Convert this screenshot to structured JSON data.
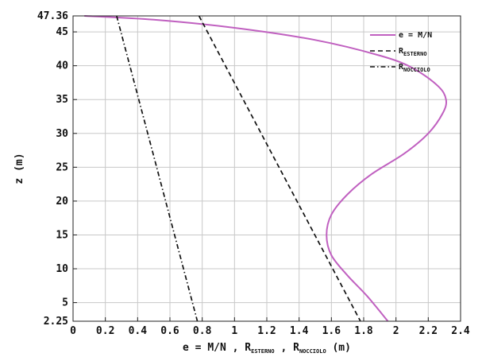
{
  "chart_data": {
    "type": "line",
    "xlabel": {
      "main": "e = M/N , R",
      "sub1": "ESTERNO",
      "sep": " , R",
      "sub2": "NOCCIOLO",
      "unit": " (m)"
    },
    "ylabel": "z (m)",
    "xlim": [
      0,
      2.4
    ],
    "ylim": [
      2.25,
      47.36
    ],
    "xticks": [
      "0",
      "0.2",
      "0.4",
      "0.6",
      "0.8",
      "1",
      "1.2",
      "1.4",
      "1.6",
      "1.8",
      "2",
      "2.2",
      "2.4"
    ],
    "xtick_values": [
      0,
      0.2,
      0.4,
      0.6,
      0.8,
      1,
      1.2,
      1.4,
      1.6,
      1.8,
      2,
      2.2,
      2.4
    ],
    "yticks": [
      "2.25",
      "5",
      "10",
      "15",
      "20",
      "25",
      "30",
      "35",
      "40",
      "45",
      "47.36"
    ],
    "ytick_values": [
      2.25,
      5,
      10,
      15,
      20,
      25,
      30,
      35,
      40,
      45,
      47.36
    ],
    "grid": true,
    "legend_position": "top-right",
    "series": [
      {
        "name": "e = M/N",
        "style": "solid",
        "color": "#c060c0",
        "points": [
          [
            0.07,
            47.36
          ],
          [
            0.5,
            46.8
          ],
          [
            1.0,
            45.6
          ],
          [
            1.5,
            43.8
          ],
          [
            1.9,
            41.5
          ],
          [
            2.1,
            39.7
          ],
          [
            2.26,
            37.0
          ],
          [
            2.31,
            35.0
          ],
          [
            2.29,
            33.0
          ],
          [
            2.2,
            30.0
          ],
          [
            2.05,
            27.0
          ],
          [
            1.85,
            24.0
          ],
          [
            1.7,
            21.0
          ],
          [
            1.6,
            18.0
          ],
          [
            1.57,
            15.0
          ],
          [
            1.6,
            12.0
          ],
          [
            1.7,
            9.0
          ],
          [
            1.82,
            6.0
          ],
          [
            1.95,
            2.25
          ]
        ]
      },
      {
        "name": "R_ESTERNO",
        "legend": {
          "main": "R",
          "sub": "ESTERNO"
        },
        "style": "dashed",
        "color": "#111111",
        "points": [
          [
            0.78,
            47.36
          ],
          [
            1.78,
            2.25
          ]
        ]
      },
      {
        "name": "R_NOCCIOLO",
        "legend": {
          "main": "R",
          "sub": "NOCCIOLO"
        },
        "style": "dashdot",
        "color": "#111111",
        "points": [
          [
            0.27,
            47.36
          ],
          [
            0.77,
            2.25
          ]
        ]
      }
    ]
  }
}
